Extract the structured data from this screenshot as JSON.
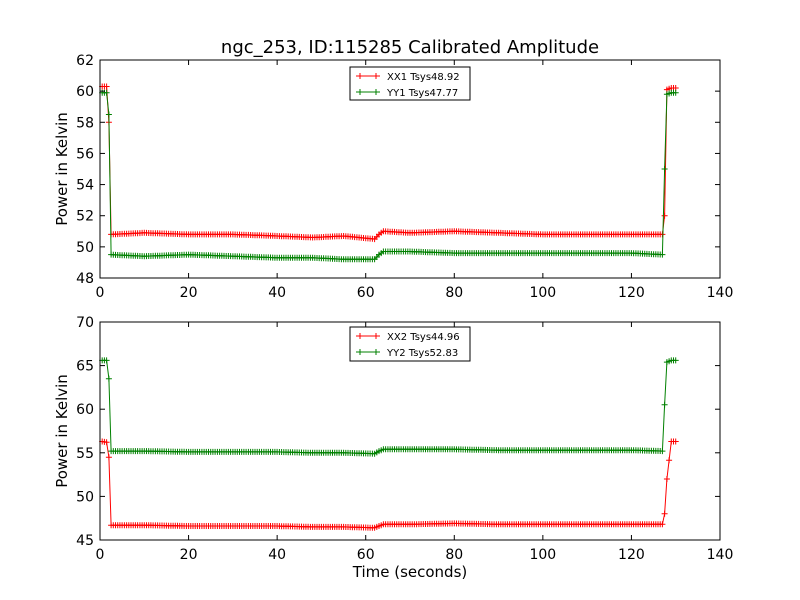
{
  "title": "ngc_253, ID:115285 Calibrated Amplitude",
  "chart_data": [
    {
      "type": "line",
      "title": "ngc_253, ID:115285 Calibrated Amplitude",
      "xlabel": "",
      "ylabel": "Power in Kelvin",
      "xlim": [
        0,
        140
      ],
      "ylim": [
        48,
        62
      ],
      "xticks": [
        "0",
        "20",
        "40",
        "60",
        "80",
        "100",
        "120",
        "140"
      ],
      "yticks": [
        "48",
        "50",
        "52",
        "54",
        "56",
        "58",
        "60",
        "62"
      ],
      "grid": false,
      "legend_position": "top-center",
      "marker": "+",
      "series": [
        {
          "name": "XX1 Tsys48.92",
          "color": "#ff0000",
          "x": [
            0.5,
            1.5,
            2.0,
            2.5,
            10,
            20,
            30,
            40,
            48,
            55,
            62,
            63,
            64,
            70,
            80,
            90,
            100,
            110,
            120,
            127,
            127.5,
            128,
            129,
            130
          ],
          "y": [
            60.3,
            60.3,
            58.0,
            50.8,
            50.9,
            50.8,
            50.8,
            50.7,
            50.6,
            50.7,
            50.5,
            50.8,
            51.0,
            50.9,
            51.0,
            50.9,
            50.8,
            50.8,
            50.8,
            50.8,
            52.0,
            60.1,
            60.2,
            60.2
          ]
        },
        {
          "name": "YY1 Tsys47.77",
          "color": "#008000",
          "x": [
            0.5,
            1.5,
            2.0,
            2.5,
            10,
            20,
            30,
            40,
            48,
            55,
            62,
            63,
            64,
            70,
            80,
            90,
            100,
            110,
            120,
            127,
            127.5,
            128,
            129,
            130
          ],
          "y": [
            59.9,
            59.9,
            58.5,
            49.5,
            49.4,
            49.5,
            49.4,
            49.3,
            49.3,
            49.2,
            49.2,
            49.5,
            49.7,
            49.7,
            49.6,
            49.6,
            49.6,
            49.6,
            49.6,
            49.5,
            55.0,
            59.8,
            59.9,
            59.9
          ]
        }
      ]
    },
    {
      "type": "line",
      "title": "",
      "xlabel": "Time (seconds)",
      "ylabel": "Power in Kelvin",
      "xlim": [
        0,
        140
      ],
      "ylim": [
        45,
        70
      ],
      "xticks": [
        "0",
        "20",
        "40",
        "60",
        "80",
        "100",
        "120",
        "140"
      ],
      "yticks": [
        "45",
        "50",
        "55",
        "60",
        "65",
        "70"
      ],
      "grid": false,
      "legend_position": "top-center",
      "marker": "+",
      "series": [
        {
          "name": "XX2 Tsys44.96",
          "color": "#ff0000",
          "x": [
            0.5,
            1.5,
            2.0,
            2.5,
            10,
            20,
            30,
            40,
            48,
            55,
            62,
            63,
            64,
            70,
            80,
            90,
            100,
            110,
            120,
            127,
            127.5,
            128,
            129,
            130
          ],
          "y": [
            56.3,
            56.2,
            54.5,
            46.7,
            46.7,
            46.6,
            46.6,
            46.6,
            46.5,
            46.5,
            46.4,
            46.6,
            46.8,
            46.8,
            46.9,
            46.8,
            46.8,
            46.8,
            46.8,
            46.8,
            48.0,
            52.0,
            56.3,
            56.3
          ]
        },
        {
          "name": "YY2 Tsys52.83",
          "color": "#008000",
          "x": [
            0.5,
            1.5,
            2.0,
            2.5,
            10,
            20,
            30,
            40,
            48,
            55,
            62,
            63,
            64,
            70,
            80,
            90,
            100,
            110,
            120,
            127,
            127.5,
            128,
            129,
            130
          ],
          "y": [
            65.6,
            65.6,
            63.5,
            55.2,
            55.2,
            55.1,
            55.1,
            55.1,
            55.0,
            55.0,
            54.9,
            55.2,
            55.4,
            55.4,
            55.4,
            55.3,
            55.3,
            55.3,
            55.3,
            55.2,
            60.5,
            65.4,
            65.6,
            65.6
          ]
        }
      ]
    }
  ]
}
